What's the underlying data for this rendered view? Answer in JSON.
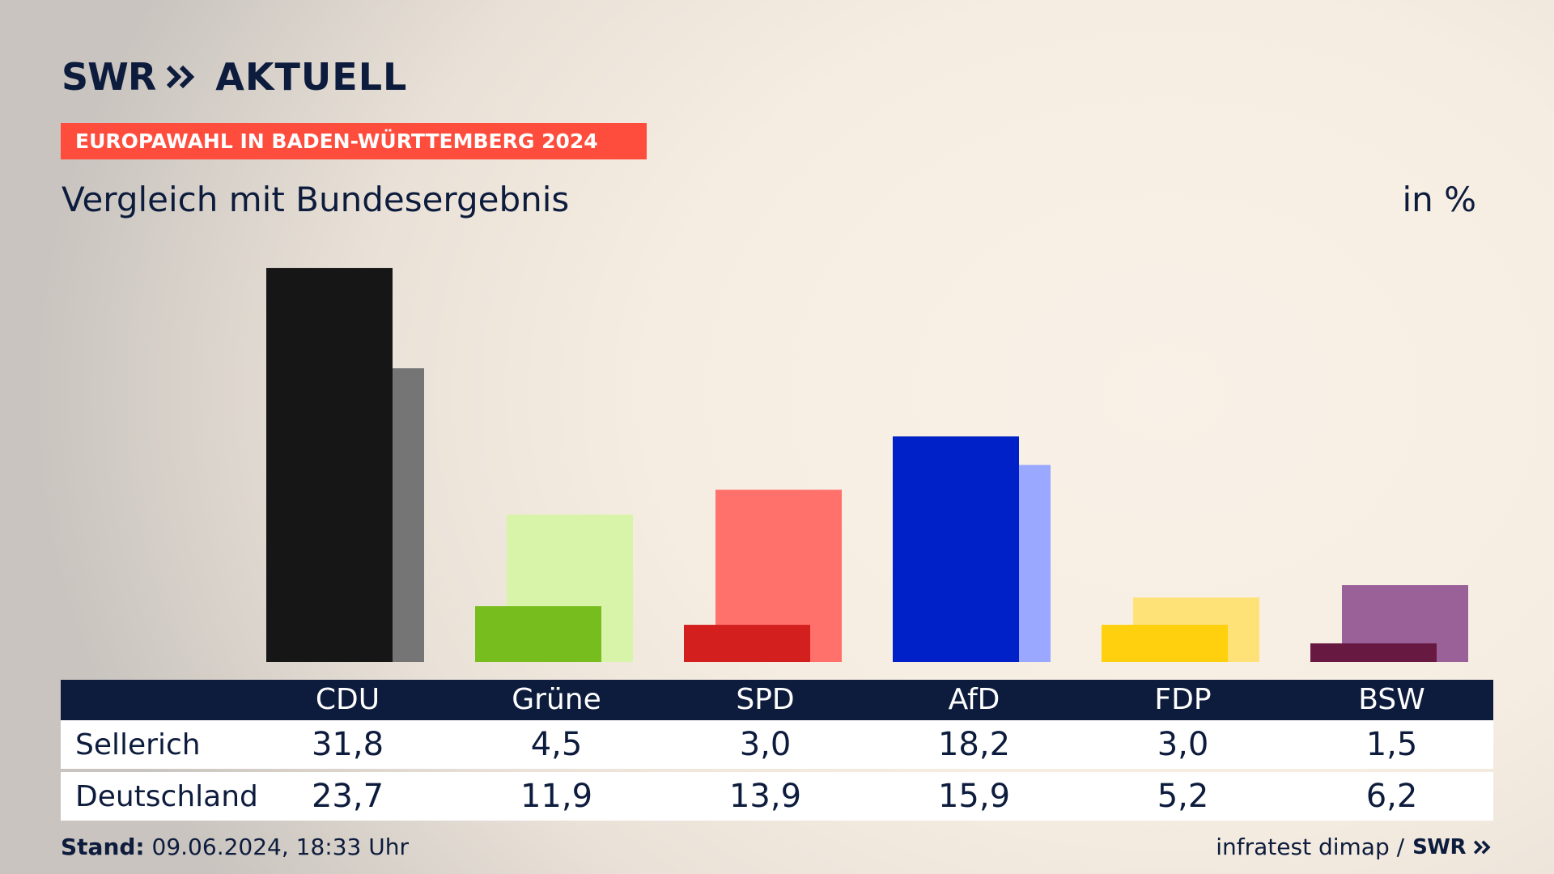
{
  "header": {
    "logo_brand": "SWR",
    "logo_product": "AKTUELL",
    "banner": "EUROPAWAHL IN BADEN-WÜRTTEMBERG 2024",
    "subtitle": "Vergleich mit Bundesergebnis",
    "unit": "in %"
  },
  "colors": {
    "banner": "#ff4d3d",
    "table_header": "#0d1c3d",
    "text": "#0d1c3d"
  },
  "chart_data": {
    "type": "bar",
    "categories": [
      "CDU",
      "Grüne",
      "SPD",
      "AfD",
      "FDP",
      "BSW"
    ],
    "series": [
      {
        "name": "Sellerich",
        "values": [
          31.8,
          4.5,
          3.0,
          18.2,
          3.0,
          1.5
        ],
        "colors": [
          "#161616",
          "#78bd1e",
          "#d41f1f",
          "#0021c8",
          "#ffd00d",
          "#671941"
        ]
      },
      {
        "name": "Deutschland",
        "values": [
          23.7,
          11.9,
          13.9,
          15.9,
          5.2,
          6.2
        ],
        "colors": [
          "#757575",
          "#d7f4a9",
          "#ff716a",
          "#9aa9ff",
          "#ffe277",
          "#9a6098"
        ]
      }
    ],
    "value_labels": {
      "Sellerich": [
        "31,8",
        "4,5",
        "3,0",
        "18,2",
        "3,0",
        "1,5"
      ],
      "Deutschland": [
        "23,7",
        "11,9",
        "13,9",
        "15,9",
        "5,2",
        "6,2"
      ]
    },
    "ylim": [
      0,
      32
    ]
  },
  "footer": {
    "stand_label": "Stand:",
    "stand_value": "09.06.2024, 18:33 Uhr",
    "source": "infratest dimap /",
    "source_brand": "SWR"
  }
}
